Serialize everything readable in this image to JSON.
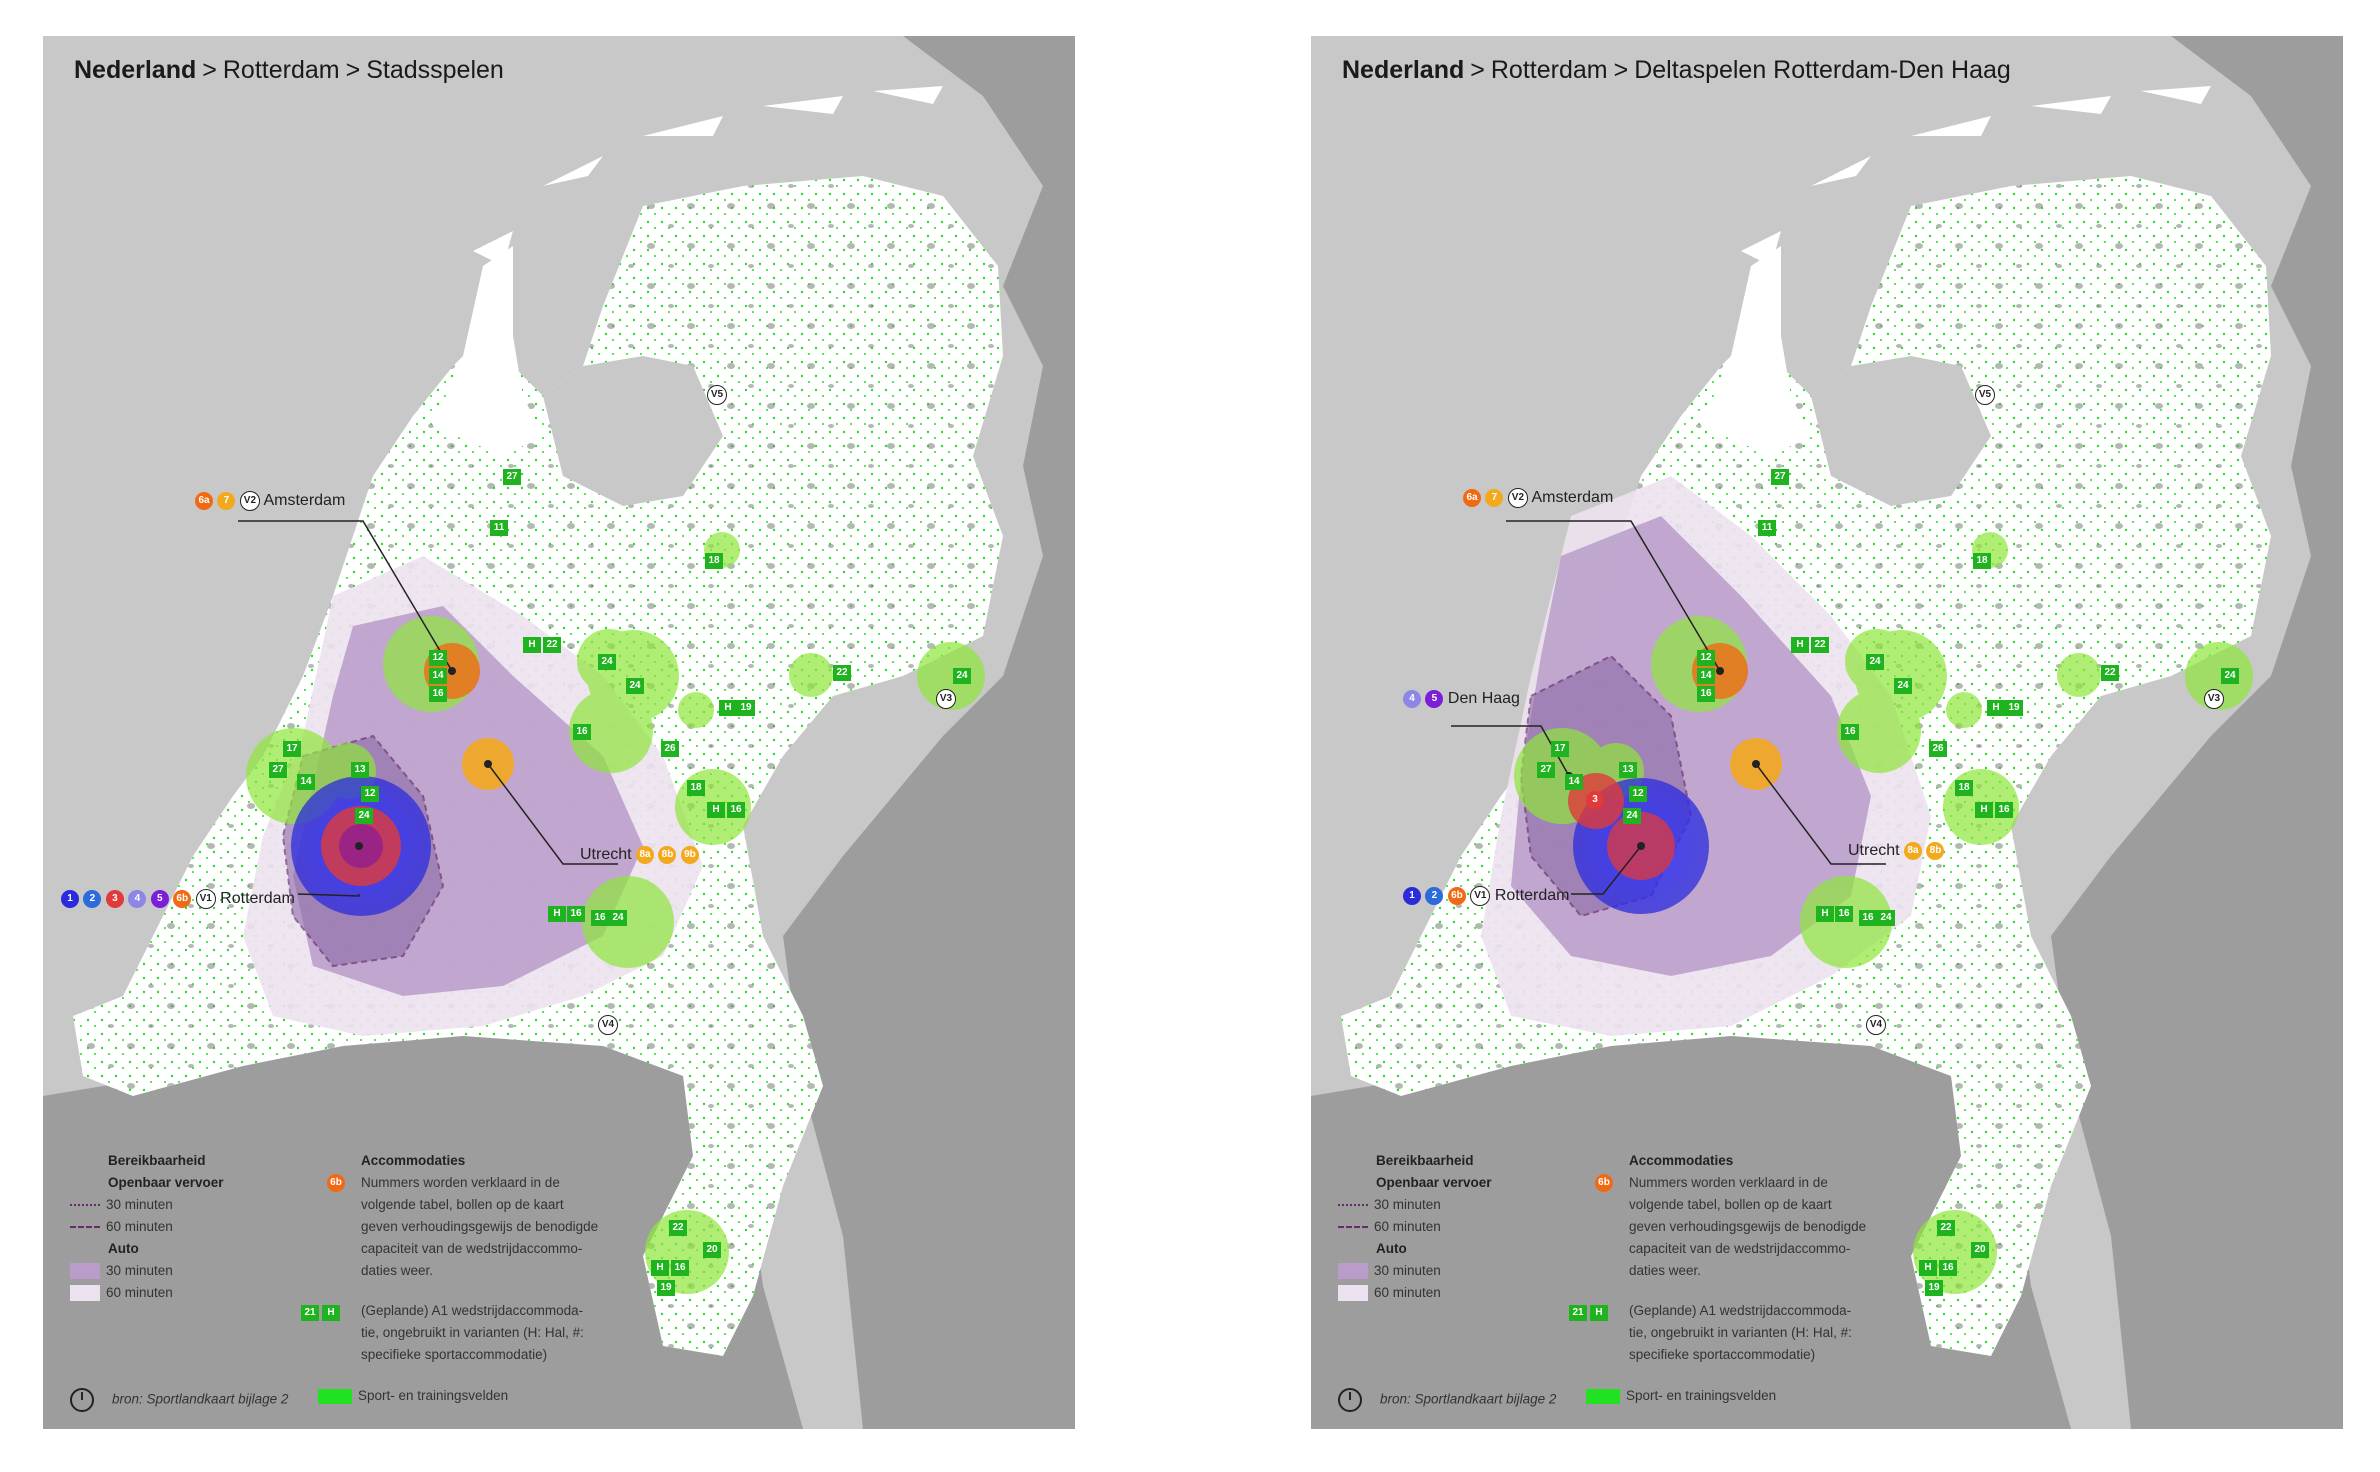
{
  "colors": {
    "sea": "#c8c8c8",
    "land": "#ffffff",
    "neighbour": "#9d9d9d",
    "urban": "#7e8a7e",
    "fields": "#22e022",
    "car30": "#b99cc9",
    "car60": "#ece2ef",
    "blue": "#2b2bdc",
    "red": "#e03a3a",
    "orange": "#f06a14",
    "amber": "#f3a91e",
    "purple": "#7a1fd6",
    "lavender": "#8e86e6"
  },
  "panels": [
    {
      "breadcrumb": {
        "country": "Nederland",
        "sep1": ">",
        "city": "Rotterdam",
        "sep2": ">",
        "theme": "Stadsspelen"
      },
      "labels": {
        "amsterdam": {
          "badges": [
            "6a",
            "7",
            "V2"
          ],
          "name": "Amsterdam"
        },
        "rotterdam": {
          "badges": [
            "1",
            "2",
            "3",
            "4",
            "5",
            "6b",
            "V1"
          ],
          "name": "Rotterdam"
        },
        "utrecht": {
          "badges": [
            "8a",
            "8b",
            "9b"
          ],
          "name": "Utrecht"
        },
        "v3": "V3",
        "v4": "V4",
        "v5": "V5"
      }
    },
    {
      "breadcrumb": {
        "country": "Nederland",
        "sep1": ">",
        "city": "Rotterdam",
        "sep2": ">",
        "theme": "Deltaspelen Rotterdam-Den Haag"
      },
      "labels": {
        "amsterdam": {
          "badges": [
            "6a",
            "7",
            "V2"
          ],
          "name": "Amsterdam"
        },
        "denhaag": {
          "badges": [
            "4",
            "5"
          ],
          "name": "Den Haag"
        },
        "rotterdam": {
          "badges": [
            "1",
            "2",
            "6b",
            "V1"
          ],
          "name": "Rotterdam"
        },
        "utrecht": {
          "badges": [
            "8a",
            "8b"
          ],
          "name": "Utrecht"
        },
        "v3": "V3",
        "v4": "V4",
        "v5": "V5",
        "circle3": "3"
      }
    }
  ],
  "venue_squares": [
    "27",
    "11",
    "18",
    "12",
    "14",
    "16",
    "H",
    "22",
    "24",
    "24",
    "16",
    "22",
    "24",
    "17",
    "27",
    "14",
    "13",
    "12",
    "24",
    "26",
    "H",
    "19",
    "18",
    "H",
    "16",
    "H",
    "16",
    "16",
    "24",
    "22",
    "20",
    "H",
    "16",
    "19"
  ],
  "legend": {
    "reach_title": "Bereikbaarheid",
    "pt_title": "Openbaar vervoer",
    "pt30": "30 minuten",
    "pt60": "60 minuten",
    "car_title": "Auto",
    "car30": "30 minuten",
    "car60": "60 minuten",
    "acc_title": "Accommodaties",
    "acc_badge": "6b",
    "acc_lines": [
      "Nummers worden verklaard in de",
      "volgende tabel, bollen op de kaart",
      "geven verhoudingsgewijs de benodigde",
      "capaciteit van de wedstrijdaccommo-",
      "daties weer."
    ],
    "a1_badges": [
      "21",
      "H"
    ],
    "a1_lines": [
      "(Geplande) A1 wedstrijdaccommoda-",
      "tie, ongebruikt in varianten (H: Hal, #:",
      "specifieke sportaccommodatie)"
    ],
    "source": "bron: Sportlandkaart bijlage 2",
    "fields": "Sport- en trainingsvelden"
  }
}
